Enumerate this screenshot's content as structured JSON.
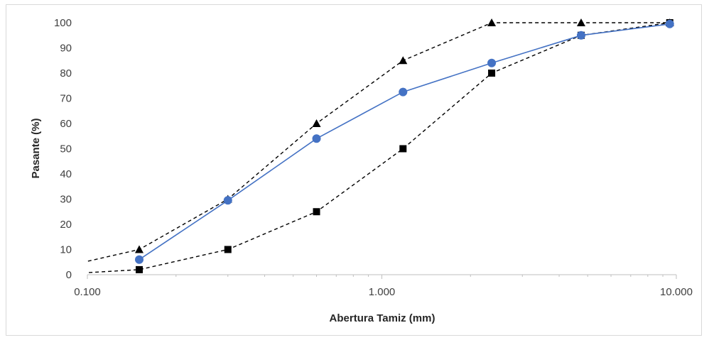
{
  "chart_data": {
    "type": "line",
    "xlabel": "Abertura Tamiz (mm)",
    "ylabel": "Pasante (%)",
    "x_scale": "log",
    "xlim": [
      0.1,
      10
    ],
    "ylim": [
      0,
      100
    ],
    "grid": false,
    "legend": "none",
    "x_ticks": [
      {
        "value": 0.1,
        "label": "0.100"
      },
      {
        "value": 1,
        "label": "1.000"
      },
      {
        "value": 10,
        "label": "10.000"
      }
    ],
    "y_ticks": [
      0,
      10,
      20,
      30,
      40,
      50,
      60,
      70,
      80,
      90,
      100
    ],
    "series": [
      {
        "style": "dashed",
        "marker": "triangle",
        "color": "#000000",
        "x": [
          0.075,
          0.15,
          0.3,
          0.6,
          1.18,
          2.36,
          4.75,
          9.5
        ],
        "y": [
          2,
          10,
          30,
          60,
          85,
          100,
          100,
          100
        ]
      },
      {
        "style": "dashed",
        "marker": "square",
        "color": "#000000",
        "x": [
          0.075,
          0.15,
          0.3,
          0.6,
          1.18,
          2.36,
          4.75,
          9.5
        ],
        "y": [
          0,
          2,
          10,
          25,
          50,
          80,
          95,
          100
        ]
      },
      {
        "style": "solid",
        "marker": "circle",
        "color": "#4472c4",
        "x": [
          0.15,
          0.3,
          0.6,
          1.18,
          2.36,
          4.75,
          9.5
        ],
        "y": [
          6,
          29.5,
          54,
          72.5,
          84,
          95,
          99.5
        ]
      }
    ]
  }
}
